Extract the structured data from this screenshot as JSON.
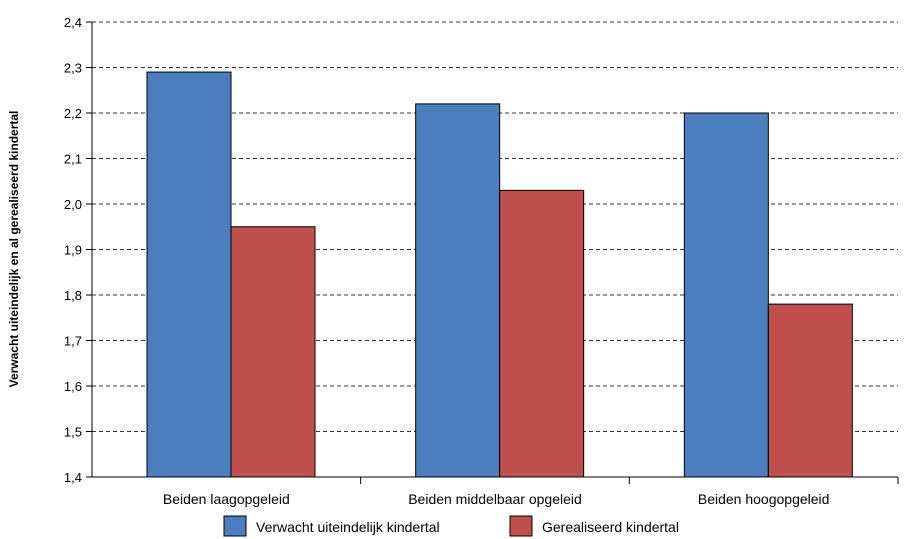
{
  "chart_data": {
    "type": "bar",
    "title": "",
    "xlabel": "",
    "ylabel": "Verwacht uiteindelijk en al gerealiseerd kindertal",
    "categories": [
      "Beiden laagopgeleid",
      "Beiden middelbaar opgeleid",
      "Beiden hoogopgeleid"
    ],
    "series": [
      {
        "name": "Verwacht uiteindelijk kindertal",
        "values": [
          2.29,
          2.22,
          2.2
        ],
        "color": "#4a7ebf"
      },
      {
        "name": "Gerealiseerd kindertal",
        "values": [
          1.95,
          2.03,
          1.78
        ],
        "color": "#c0504d"
      }
    ],
    "ylim": [
      1.4,
      2.4
    ],
    "yticks": [
      "1,4",
      "1,5",
      "1,6",
      "1,7",
      "1,8",
      "1,9",
      "2,0",
      "2,1",
      "2,2",
      "2,3",
      "2,4"
    ],
    "grid": "dashed horizontal",
    "legend": "bottom"
  }
}
